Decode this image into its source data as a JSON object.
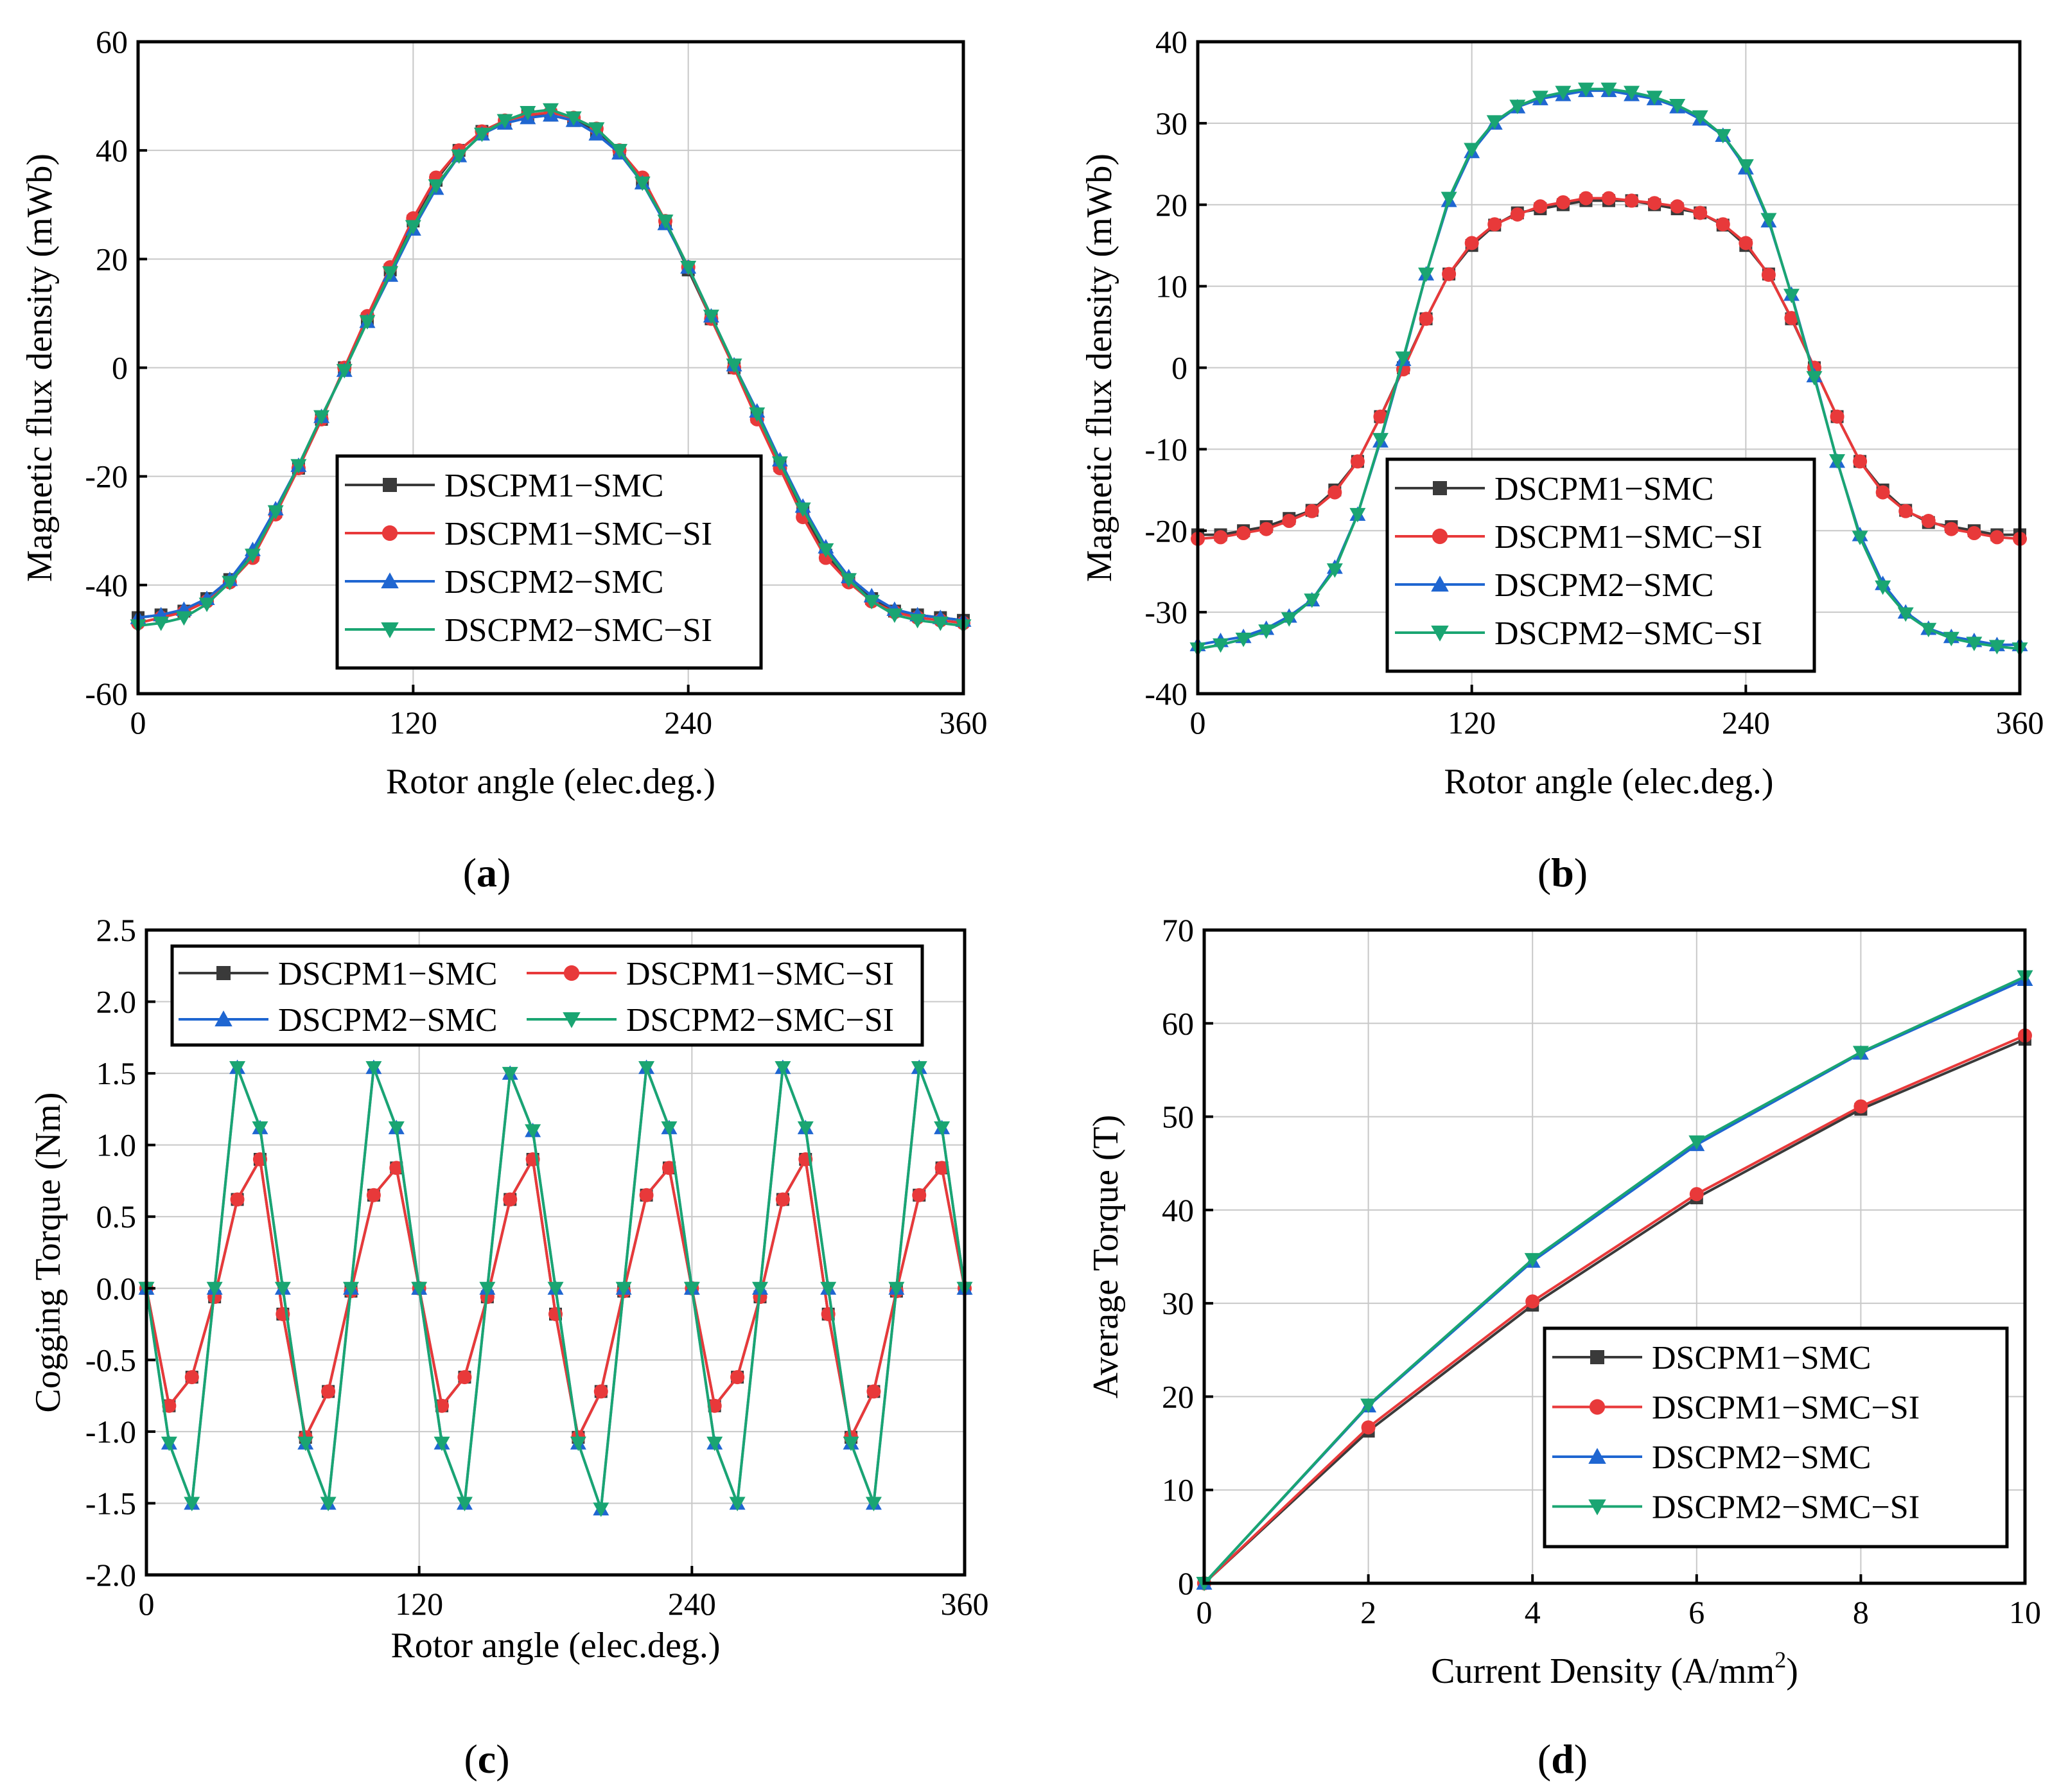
{
  "series_styles": [
    {
      "name": "DSCPM1−SMC",
      "color": "#3a3a3a",
      "marker": "square"
    },
    {
      "name": "DSCPM1−SMC−SI",
      "color": "#e8393a",
      "marker": "circle"
    },
    {
      "name": "DSCPM2−SMC",
      "color": "#1f66d1",
      "marker": "triangle-up"
    },
    {
      "name": "DSCPM2−SMC−SI",
      "color": "#1aa572",
      "marker": "triangle-down"
    }
  ],
  "chart_data": [
    {
      "id": "a",
      "panel_label": "a",
      "type": "line",
      "xlabel": "Rotor angle (elec.deg.)",
      "ylabel": "Magnetic flux density (mWb)",
      "xlim": [
        0,
        360
      ],
      "ylim": [
        -60,
        60
      ],
      "xticks": [
        0,
        120,
        240,
        360
      ],
      "yticks": [
        -60,
        -40,
        -20,
        0,
        20,
        40,
        60
      ],
      "yticklabels": [
        "-60",
        "-40",
        "-20",
        "0",
        "20",
        "40",
        "60"
      ],
      "grid": true,
      "legend": "lower-center",
      "x": [
        0,
        10,
        20,
        30,
        40,
        50,
        60,
        70,
        80,
        90,
        100,
        110,
        120,
        130,
        140,
        150,
        160,
        170,
        180,
        190,
        200,
        210,
        220,
        230,
        240,
        250,
        260,
        270,
        280,
        290,
        300,
        310,
        320,
        330,
        340,
        350,
        360
      ],
      "series": [
        {
          "name": "DSCPM1−SMC",
          "values": [
            -46,
            -45.5,
            -44.8,
            -42.5,
            -39,
            -34.5,
            -26.5,
            -18.5,
            -9.5,
            0,
            9,
            18,
            27,
            34.5,
            40,
            43.5,
            45.5,
            46.5,
            46.5,
            45.5,
            43.5,
            40,
            34.5,
            27,
            18,
            9,
            0,
            -9,
            -18,
            -26.5,
            -34.5,
            -39,
            -42.5,
            -44.8,
            -45.5,
            -46,
            -46.5
          ]
        },
        {
          "name": "DSCPM1−SMC−SI",
          "values": [
            -47,
            -46,
            -45,
            -43,
            -39.5,
            -35,
            -27,
            -18.5,
            -9.5,
            0,
            9.5,
            18.5,
            27.5,
            35,
            40,
            43.5,
            45.5,
            46.5,
            47,
            46,
            44,
            40,
            35,
            27,
            18.5,
            9,
            0,
            -9.5,
            -18.5,
            -27.5,
            -35,
            -39.5,
            -43,
            -45,
            -46,
            -46.5,
            -47
          ]
        },
        {
          "name": "DSCPM2−SMC",
          "values": [
            -46,
            -45.5,
            -44.5,
            -42.5,
            -39,
            -33.5,
            -26,
            -18,
            -9,
            -0.5,
            8.5,
            17,
            25.5,
            33,
            39,
            43,
            45,
            46,
            46.5,
            45.5,
            43,
            39.5,
            34,
            26.5,
            18.5,
            9.5,
            0.5,
            -8,
            -17,
            -25.5,
            -33,
            -38.5,
            -42,
            -44.5,
            -45.5,
            -46,
            -46.5
          ]
        },
        {
          "name": "DSCPM2−SMC−SI",
          "values": [
            -47.5,
            -47,
            -46,
            -43.5,
            -39.5,
            -34.5,
            -26.5,
            -18,
            -9,
            -0.5,
            8.5,
            17.5,
            26,
            33.5,
            39,
            43,
            45.5,
            47,
            47.5,
            46,
            44,
            40,
            34,
            27,
            18.5,
            9.5,
            0.5,
            -8.5,
            -17.5,
            -26,
            -33.5,
            -39,
            -43,
            -45.5,
            -46.5,
            -47,
            -47.5
          ]
        }
      ]
    },
    {
      "id": "b",
      "panel_label": "b",
      "type": "line",
      "xlabel": "Rotor angle (elec.deg.)",
      "ylabel": "Magnetic flux density (mWb)",
      "xlim": [
        0,
        360
      ],
      "ylim": [
        -40,
        40
      ],
      "xticks": [
        0,
        120,
        240,
        360
      ],
      "yticks": [
        -40,
        -30,
        -20,
        -10,
        0,
        10,
        20,
        30,
        40
      ],
      "yticklabels": [
        "-40",
        "-30",
        "-20",
        "-10",
        "0",
        "10",
        "20",
        "30",
        "40"
      ],
      "grid": true,
      "legend": "lower-center",
      "x": [
        0,
        10,
        20,
        30,
        40,
        50,
        60,
        70,
        80,
        90,
        100,
        110,
        120,
        130,
        140,
        150,
        160,
        170,
        180,
        190,
        200,
        210,
        220,
        230,
        240,
        250,
        260,
        270,
        280,
        290,
        300,
        310,
        320,
        330,
        340,
        350,
        360
      ],
      "series": [
        {
          "name": "DSCPM1−SMC",
          "values": [
            -20.5,
            -20.5,
            -20,
            -19.5,
            -18.5,
            -17.5,
            -15,
            -11.5,
            -6,
            0,
            6,
            11.5,
            15,
            17.5,
            19,
            19.5,
            20,
            20.5,
            20.5,
            20.5,
            20,
            19.5,
            19,
            17.5,
            15,
            11.5,
            6,
            0,
            -6,
            -11.5,
            -15,
            -17.5,
            -19,
            -19.5,
            -20,
            -20.5,
            -20.5
          ]
        },
        {
          "name": "DSCPM1−SMC−SI",
          "values": [
            -21,
            -20.8,
            -20.3,
            -19.8,
            -18.8,
            -17.6,
            -15.3,
            -11.5,
            -6,
            -0.2,
            6,
            11.5,
            15.3,
            17.6,
            18.8,
            19.8,
            20.3,
            20.8,
            20.8,
            20.5,
            20.2,
            19.8,
            19,
            17.6,
            15.3,
            11.4,
            6.1,
            0,
            -6,
            -11.5,
            -15.3,
            -17.6,
            -18.8,
            -19.8,
            -20.3,
            -20.8,
            -21
          ]
        },
        {
          "name": "DSCPM2−SMC",
          "values": [
            -34,
            -33.5,
            -33,
            -32,
            -30.5,
            -28.5,
            -24.5,
            -18,
            -9,
            1,
            11.5,
            20.5,
            26.5,
            30,
            32,
            33,
            33.5,
            34,
            34,
            33.5,
            33,
            32,
            30.5,
            28.5,
            24.5,
            18,
            9,
            -1,
            -11.5,
            -20.5,
            -26.5,
            -30,
            -32,
            -33,
            -33.5,
            -34,
            -34
          ]
        },
        {
          "name": "DSCPM2−SMC−SI",
          "values": [
            -34.5,
            -34,
            -33.3,
            -32.3,
            -30.8,
            -28.5,
            -24.8,
            -18,
            -8.8,
            1.2,
            11.5,
            20.8,
            26.8,
            30.2,
            32.1,
            33.2,
            33.8,
            34.2,
            34.2,
            33.8,
            33.2,
            32.2,
            30.8,
            28.5,
            24.8,
            18.2,
            8.9,
            -1.2,
            -11.4,
            -20.8,
            -26.9,
            -30.2,
            -32.1,
            -33.2,
            -33.8,
            -34.2,
            -34.5
          ]
        }
      ]
    },
    {
      "id": "c",
      "panel_label": "c",
      "type": "line",
      "xlabel": "Rotor angle (elec.deg.)",
      "ylabel": "Cogging Torque (Nm)",
      "xlim": [
        0,
        360
      ],
      "ylim": [
        -2.0,
        2.5
      ],
      "xticks": [
        0,
        120,
        240,
        360
      ],
      "yticks": [
        -2.0,
        -1.5,
        -1.0,
        -0.5,
        0.0,
        0.5,
        1.0,
        1.5,
        2.0,
        2.5
      ],
      "yticklabels": [
        "-2.0",
        "-1.5",
        "-1.0",
        "-0.5",
        "0.0",
        "0.5",
        "1.0",
        "1.5",
        "2.0",
        "2.5"
      ],
      "grid": true,
      "legend": "top-center",
      "series": [
        {
          "name": "DSCPM1−SMC",
          "x": [
            0,
            10,
            20,
            30,
            40,
            50,
            60,
            70,
            80,
            90,
            100,
            110,
            120,
            130,
            140,
            150,
            160,
            170,
            180,
            190,
            200,
            210,
            220,
            230,
            240,
            250,
            260,
            270,
            280,
            290,
            300,
            310,
            320,
            330,
            340,
            350,
            360
          ],
          "values": [
            0,
            -0.82,
            -0.62,
            -0.06,
            0.62,
            0.9,
            -0.18,
            -1.04,
            -0.72,
            -0.02,
            0.65,
            0.84,
            0,
            -0.82,
            -0.62,
            -0.06,
            0.62,
            0.9,
            -0.18,
            -1.04,
            -0.72,
            -0.02,
            0.65,
            0.84,
            0,
            -0.82,
            -0.62,
            -0.06,
            0.62,
            0.9,
            -0.18,
            -1.04,
            -0.72,
            -0.02,
            0.65,
            0.84,
            0
          ]
        },
        {
          "name": "DSCPM1−SMC−SI",
          "x": [
            0,
            10,
            20,
            30,
            40,
            50,
            60,
            70,
            80,
            90,
            100,
            110,
            120,
            130,
            140,
            150,
            160,
            170,
            180,
            190,
            200,
            210,
            220,
            230,
            240,
            250,
            260,
            270,
            280,
            290,
            300,
            310,
            320,
            330,
            340,
            350,
            360
          ],
          "values": [
            0,
            -0.82,
            -0.62,
            -0.06,
            0.62,
            0.9,
            -0.18,
            -1.04,
            -0.72,
            -0.02,
            0.65,
            0.84,
            0,
            -0.82,
            -0.62,
            -0.06,
            0.62,
            0.9,
            -0.18,
            -1.04,
            -0.72,
            -0.02,
            0.65,
            0.84,
            0,
            -0.82,
            -0.62,
            -0.06,
            0.62,
            0.9,
            -0.18,
            -1.04,
            -0.72,
            -0.02,
            0.65,
            0.84,
            0
          ]
        },
        {
          "name": "DSCPM2−SMC",
          "x": [
            0,
            10,
            20,
            30,
            40,
            50,
            60,
            70,
            80,
            90,
            100,
            110,
            120,
            130,
            140,
            150,
            160,
            170,
            180,
            190,
            200,
            210,
            220,
            230,
            240,
            250,
            260,
            270,
            280,
            290,
            300,
            310,
            320,
            330,
            340,
            350,
            360
          ],
          "values": [
            0,
            -1.08,
            -1.5,
            0,
            1.54,
            1.12,
            0,
            -1.08,
            -1.5,
            0,
            1.54,
            1.12,
            0,
            -1.08,
            -1.5,
            0,
            1.5,
            1.1,
            0,
            -1.08,
            -1.54,
            0,
            1.54,
            1.12,
            0,
            -1.08,
            -1.5,
            0,
            1.54,
            1.12,
            0,
            -1.08,
            -1.5,
            0,
            1.54,
            1.12,
            0
          ]
        },
        {
          "name": "DSCPM2−SMC−SI",
          "x": [
            0,
            10,
            20,
            30,
            40,
            50,
            60,
            70,
            80,
            90,
            100,
            110,
            120,
            130,
            140,
            150,
            160,
            170,
            180,
            190,
            200,
            210,
            220,
            230,
            240,
            250,
            260,
            270,
            280,
            290,
            300,
            310,
            320,
            330,
            340,
            350,
            360
          ],
          "values": [
            0,
            -1.08,
            -1.5,
            0,
            1.54,
            1.12,
            0,
            -1.08,
            -1.5,
            0,
            1.54,
            1.12,
            0,
            -1.08,
            -1.5,
            0,
            1.5,
            1.1,
            0,
            -1.08,
            -1.54,
            0,
            1.54,
            1.12,
            0,
            -1.08,
            -1.5,
            0,
            1.54,
            1.12,
            0,
            -1.08,
            -1.5,
            0,
            1.54,
            1.12,
            0
          ]
        }
      ]
    },
    {
      "id": "d",
      "panel_label": "d",
      "type": "line",
      "xlabel": "Current Density (A/mm",
      "xlabel_sup": "2",
      "xlabel_suffix": ")",
      "ylabel": "Average Torque (T)",
      "xlim": [
        0,
        10
      ],
      "ylim": [
        0,
        70
      ],
      "xticks": [
        0,
        2,
        4,
        6,
        8,
        10
      ],
      "yticks": [
        0,
        10,
        20,
        30,
        40,
        50,
        60,
        70
      ],
      "yticklabels": [
        "0",
        "10",
        "20",
        "30",
        "40",
        "50",
        "60",
        "70"
      ],
      "grid": true,
      "legend": "bottom-right",
      "x": [
        0,
        2,
        4,
        6,
        8,
        10
      ],
      "series": [
        {
          "name": "DSCPM1−SMC",
          "values": [
            0,
            16.3,
            29.8,
            41.3,
            50.8,
            58.3
          ]
        },
        {
          "name": "DSCPM1−SMC−SI",
          "values": [
            0,
            16.7,
            30.2,
            41.7,
            51.1,
            58.7
          ]
        },
        {
          "name": "DSCPM2−SMC",
          "values": [
            0,
            19,
            34.5,
            47,
            56.8,
            64.7
          ]
        },
        {
          "name": "DSCPM2−SMC−SI",
          "values": [
            0,
            19.1,
            34.7,
            47.3,
            56.9,
            65
          ]
        }
      ]
    }
  ]
}
